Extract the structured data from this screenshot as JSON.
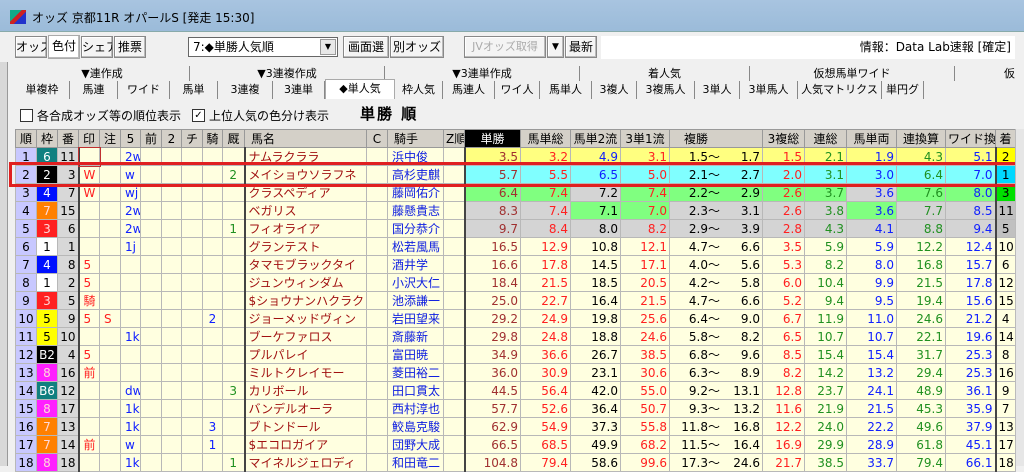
{
  "window": {
    "title": "オッズ 京都11R オパールS  [発走 15:30]",
    "icon": "app-horse-icon"
  },
  "toolbar": {
    "buttons": [
      "オッズ",
      "色付",
      "シェア",
      "推票"
    ],
    "active": "色付",
    "select_value": "7:◆単勝人気順",
    "screen_select": "画面選",
    "other_odds": "別オッズ",
    "jv_fetch": "JVオッズ取得",
    "latest": "最新",
    "info": "情報：Data Lab速報 [確定]"
  },
  "tab_groups": [
    "▼連作成",
    "▼3連複作成",
    "▼3連単作成",
    "着人気",
    "仮想馬単ワイド",
    "仮"
  ],
  "tabs": [
    "単複枠",
    "馬連",
    "ワイド",
    "馬単",
    "3連複",
    "3連単",
    "◆単人気",
    "枠人気",
    "馬連人",
    "ワイ人",
    "馬単人",
    "3複人",
    "3複馬人",
    "3単人",
    "3単馬人",
    "人気マトリクス",
    "単円グ"
  ],
  "selected_tab": "◆単人気",
  "options": {
    "rank_display": {
      "label": "各合成オッズ等の順位表示",
      "checked": false
    },
    "color_display": {
      "label": "上位人気の色分け表示",
      "checked": true
    }
  },
  "heading": "単勝 順",
  "columns": [
    "順",
    "枠",
    "番",
    "印",
    "注",
    "5",
    "前",
    "2",
    "チ",
    "騎",
    "厩",
    "馬名",
    "C",
    "騎手",
    "Z順",
    "単勝",
    "馬単総",
    "馬単2流",
    "3単1流",
    "複勝",
    "3複総",
    "連総",
    "馬単両",
    "連換算",
    "ワイド換",
    "着"
  ],
  "waku_colors": {
    "1": "#ffffff",
    "2": "#000000",
    "3": "#ff2020",
    "4": "#0010ff",
    "5": "#ffff00",
    "6": "#108080",
    "7": "#ff8000",
    "8": "#ff20ff",
    "B2": "#000000",
    "B6": "#108080"
  },
  "highlight_colors": {
    "yellow": "#ffff80",
    "cyan": "#80ffff",
    "green": "#80ff80",
    "grey": "#d4d4d4"
  },
  "chaku_colors": {
    "1": "#ffff00",
    "2": "#00d8ff",
    "3": "#00e000",
    "4": "#c0c0c0",
    "5": "#c0c0c0"
  },
  "rows": [
    {
      "rank": "1",
      "waku": "6",
      "ban": "11",
      "mark": "",
      "chu": "",
      "five": "2w",
      "mae": "",
      "two": "",
      "chi": "",
      "ki": "",
      "kyu": "",
      "name": "ナムラクララ",
      "c": "",
      "jockey": "浜中俊",
      "z": "",
      "tan": "3.5",
      "ut_sou": "3.2",
      "ut2": "4.9",
      "s1": "3.1",
      "fuku_lo": "1.5〜",
      "fuku_hi": "1.7",
      "sp": "1.5",
      "ren": "2.1",
      "ut_ryo": "1.9",
      "renkan": "4.3",
      "wide": "5.1",
      "chaku": "2",
      "hl": "yellow",
      "alt": {},
      "ut2_color": "blu"
    },
    {
      "rank": "2",
      "waku": "2",
      "ban": "3",
      "mark": "W",
      "chu": "",
      "five": "w",
      "mae": "",
      "two": "",
      "chi": "",
      "ki": "",
      "kyu": "2",
      "name": "メイショウソラフネ",
      "c": "",
      "jockey": "高杉吏麒",
      "z": "",
      "tan": "5.7",
      "ut_sou": "5.5",
      "ut2": "6.5",
      "s1": "5.0",
      "fuku_lo": "2.1〜",
      "fuku_hi": "2.7",
      "sp": "2.0",
      "ren": "3.1",
      "ut_ryo": "3.0",
      "renkan": "6.4",
      "wide": "7.0",
      "chaku": "1",
      "hl": "cyan",
      "alt": {},
      "ut2_color": "blu"
    },
    {
      "rank": "3",
      "waku": "4",
      "ban": "7",
      "mark": "W",
      "chu": "",
      "five": "wj",
      "mae": "",
      "two": "",
      "chi": "",
      "ki": "",
      "kyu": "",
      "name": "クラスペディア",
      "c": "",
      "jockey": "藤岡佑介",
      "z": "",
      "tan": "6.4",
      "ut_sou": "7.4",
      "ut2": "7.2",
      "s1": "7.4",
      "fuku_lo": "2.2〜",
      "fuku_hi": "2.9",
      "sp": "2.6",
      "ren": "3.7",
      "ut_ryo": "3.6",
      "renkan": "7.6",
      "wide": "8.0",
      "chaku": "3",
      "hl": "green",
      "alt": {
        "ut2": "grey",
        "ut_ryo": "grey"
      }
    },
    {
      "rank": "4",
      "waku": "7",
      "ban": "15",
      "mark": "",
      "chu": "",
      "five": "2w",
      "mae": "",
      "two": "",
      "chi": "",
      "ki": "",
      "kyu": "",
      "name": "ベガリス",
      "c": "",
      "jockey": "藤懸貴志",
      "z": "",
      "tan": "8.3",
      "ut_sou": "7.4",
      "ut2": "7.1",
      "s1": "7.0",
      "fuku_lo": "2.3〜",
      "fuku_hi": "3.1",
      "sp": "2.6",
      "ren": "3.8",
      "ut_ryo": "3.6",
      "renkan": "7.7",
      "wide": "8.5",
      "chaku": "11",
      "hl": "grey",
      "alt": {
        "ut2": "green",
        "s1": "green",
        "ut_ryo": "green"
      }
    },
    {
      "rank": "5",
      "waku": "3",
      "ban": "6",
      "mark": "",
      "chu": "",
      "five": "2w",
      "mae": "",
      "two": "",
      "chi": "",
      "ki": "",
      "kyu": "1",
      "name": "フィオライア",
      "c": "",
      "jockey": "国分恭介",
      "z": "",
      "tan": "9.7",
      "ut_sou": "8.4",
      "ut2": "8.0",
      "s1": "8.2",
      "fuku_lo": "2.9〜",
      "fuku_hi": "3.9",
      "sp": "2.8",
      "ren": "4.3",
      "ut_ryo": "4.1",
      "renkan": "8.8",
      "wide": "9.4",
      "chaku": "5",
      "hl": "grey",
      "alt": {}
    },
    {
      "rank": "6",
      "waku": "1",
      "ban": "1",
      "mark": "",
      "chu": "",
      "five": "1j",
      "mae": "",
      "two": "",
      "chi": "",
      "ki": "",
      "kyu": "",
      "name": "グランテスト",
      "c": "",
      "jockey": "松若風馬",
      "z": "",
      "tan": "16.5",
      "ut_sou": "12.9",
      "ut2": "10.8",
      "s1": "12.1",
      "fuku_lo": "4.7〜",
      "fuku_hi": "6.6",
      "sp": "3.5",
      "ren": "5.9",
      "ut_ryo": "5.9",
      "renkan": "12.2",
      "wide": "12.4",
      "chaku": "10",
      "hl": "",
      "alt": {}
    },
    {
      "rank": "7",
      "waku": "4",
      "ban": "8",
      "mark": "5",
      "chu": "",
      "five": "",
      "mae": "",
      "two": "",
      "chi": "",
      "ki": "",
      "kyu": "",
      "name": "タマモブラックタイ",
      "c": "",
      "jockey": "酒井学",
      "z": "",
      "tan": "16.6",
      "ut_sou": "17.8",
      "ut2": "14.5",
      "s1": "17.1",
      "fuku_lo": "4.0〜",
      "fuku_hi": "5.6",
      "sp": "5.3",
      "ren": "8.2",
      "ut_ryo": "8.0",
      "renkan": "16.8",
      "wide": "15.7",
      "chaku": "6",
      "hl": "",
      "alt": {}
    },
    {
      "rank": "8",
      "waku": "1",
      "ban": "2",
      "mark": "5",
      "chu": "",
      "five": "",
      "mae": "",
      "two": "",
      "chi": "",
      "ki": "",
      "kyu": "",
      "name": "ジュンウィンダム",
      "c": "",
      "jockey": "小沢大仁",
      "z": "",
      "tan": "18.4",
      "ut_sou": "21.5",
      "ut2": "18.5",
      "s1": "20.5",
      "fuku_lo": "4.2〜",
      "fuku_hi": "5.8",
      "sp": "6.0",
      "ren": "10.4",
      "ut_ryo": "9.9",
      "renkan": "21.5",
      "wide": "17.8",
      "chaku": "12",
      "hl": "",
      "alt": {}
    },
    {
      "rank": "9",
      "waku": "3",
      "ban": "5",
      "mark": "騎",
      "chu": "",
      "five": "",
      "mae": "",
      "two": "",
      "chi": "",
      "ki": "",
      "kyu": "",
      "name": "$ショウナンハクラク",
      "c": "",
      "jockey": "池添謙一",
      "z": "",
      "tan": "25.0",
      "ut_sou": "22.7",
      "ut2": "16.4",
      "s1": "21.5",
      "fuku_lo": "4.7〜",
      "fuku_hi": "6.6",
      "sp": "5.2",
      "ren": "9.4",
      "ut_ryo": "9.5",
      "renkan": "19.4",
      "wide": "15.6",
      "chaku": "15",
      "hl": "",
      "alt": {}
    },
    {
      "rank": "10",
      "waku": "5",
      "ban": "9",
      "mark": "5",
      "chu": "S",
      "five": "",
      "mae": "",
      "two": "",
      "chi": "",
      "ki": "2",
      "kyu": "",
      "name": "ジョーメッドヴィン",
      "c": "",
      "jockey": "岩田望来",
      "z": "",
      "tan": "29.2",
      "ut_sou": "24.9",
      "ut2": "19.8",
      "s1": "25.6",
      "fuku_lo": "6.4〜",
      "fuku_hi": "9.0",
      "sp": "6.7",
      "ren": "11.9",
      "ut_ryo": "11.0",
      "renkan": "24.6",
      "wide": "21.2",
      "chaku": "4",
      "hl": "",
      "alt": {}
    },
    {
      "rank": "11",
      "waku": "5",
      "ban": "10",
      "mark": "",
      "chu": "",
      "five": "1k",
      "mae": "",
      "two": "",
      "chi": "",
      "ki": "",
      "kyu": "",
      "name": "ブーケファロス",
      "c": "",
      "jockey": "斎藤新",
      "z": "",
      "tan": "29.8",
      "ut_sou": "24.8",
      "ut2": "18.8",
      "s1": "24.6",
      "fuku_lo": "5.8〜",
      "fuku_hi": "8.2",
      "sp": "6.5",
      "ren": "10.7",
      "ut_ryo": "10.7",
      "renkan": "22.1",
      "wide": "19.6",
      "chaku": "14",
      "hl": "",
      "alt": {}
    },
    {
      "rank": "12",
      "waku": "B2",
      "ban": "4",
      "mark": "5",
      "chu": "",
      "five": "",
      "mae": "",
      "two": "",
      "chi": "",
      "ki": "",
      "kyu": "",
      "name": "プルパレイ",
      "c": "",
      "jockey": "富田暁",
      "z": "",
      "tan": "34.9",
      "ut_sou": "36.6",
      "ut2": "26.7",
      "s1": "38.5",
      "fuku_lo": "6.8〜",
      "fuku_hi": "9.6",
      "sp": "8.5",
      "ren": "15.4",
      "ut_ryo": "15.4",
      "renkan": "31.7",
      "wide": "25.3",
      "chaku": "8",
      "hl": "",
      "alt": {}
    },
    {
      "rank": "13",
      "waku": "8",
      "ban": "16",
      "mark": "前",
      "chu": "",
      "five": "",
      "mae": "",
      "two": "",
      "chi": "",
      "ki": "",
      "kyu": "",
      "name": "ミルトクレイモー",
      "c": "",
      "jockey": "菱田裕二",
      "z": "",
      "tan": "36.0",
      "ut_sou": "30.9",
      "ut2": "23.1",
      "s1": "30.6",
      "fuku_lo": "6.3〜",
      "fuku_hi": "8.9",
      "sp": "8.2",
      "ren": "14.2",
      "ut_ryo": "13.2",
      "renkan": "29.4",
      "wide": "25.3",
      "chaku": "16",
      "hl": "",
      "alt": {}
    },
    {
      "rank": "14",
      "waku": "B6",
      "ban": "12",
      "mark": "",
      "chu": "",
      "five": "dw",
      "mae": "",
      "two": "",
      "chi": "",
      "ki": "",
      "kyu": "3",
      "name": "カリボール",
      "c": "",
      "jockey": "田口貫太",
      "z": "",
      "tan": "44.5",
      "ut_sou": "56.4",
      "ut2": "42.0",
      "s1": "55.0",
      "fuku_lo": "9.2〜",
      "fuku_hi": "13.1",
      "sp": "12.8",
      "ren": "23.7",
      "ut_ryo": "24.1",
      "renkan": "48.9",
      "wide": "36.1",
      "chaku": "9",
      "hl": "",
      "alt": {}
    },
    {
      "rank": "15",
      "waku": "8",
      "ban": "17",
      "mark": "",
      "chu": "",
      "five": "1k",
      "mae": "",
      "two": "",
      "chi": "",
      "ki": "",
      "kyu": "",
      "name": "バンデルオーラ",
      "c": "",
      "jockey": "西村淳也",
      "z": "",
      "tan": "57.7",
      "ut_sou": "52.6",
      "ut2": "36.4",
      "s1": "50.7",
      "fuku_lo": "9.3〜",
      "fuku_hi": "13.2",
      "sp": "11.6",
      "ren": "21.9",
      "ut_ryo": "21.5",
      "renkan": "45.3",
      "wide": "35.9",
      "chaku": "7",
      "hl": "",
      "alt": {}
    },
    {
      "rank": "16",
      "waku": "7",
      "ban": "13",
      "mark": "",
      "chu": "",
      "five": "1k",
      "mae": "",
      "two": "",
      "chi": "",
      "ki": "3",
      "kyu": "",
      "name": "ブトンドール",
      "c": "",
      "jockey": "鮫島克駿",
      "z": "",
      "tan": "62.9",
      "ut_sou": "54.9",
      "ut2": "37.3",
      "s1": "55.8",
      "fuku_lo": "11.8〜",
      "fuku_hi": "16.8",
      "sp": "12.2",
      "ren": "24.0",
      "ut_ryo": "22.2",
      "renkan": "49.6",
      "wide": "37.9",
      "chaku": "13",
      "hl": "",
      "alt": {}
    },
    {
      "rank": "17",
      "waku": "7",
      "ban": "14",
      "mark": "前",
      "chu": "",
      "five": "w",
      "mae": "",
      "two": "",
      "chi": "",
      "ki": "1",
      "kyu": "",
      "name": "$エコロガイア",
      "c": "",
      "jockey": "団野大成",
      "z": "",
      "tan": "66.5",
      "ut_sou": "68.5",
      "ut2": "49.9",
      "s1": "68.2",
      "fuku_lo": "11.5〜",
      "fuku_hi": "16.4",
      "sp": "16.9",
      "ren": "29.9",
      "ut_ryo": "28.9",
      "renkan": "61.8",
      "wide": "45.1",
      "chaku": "17",
      "hl": "",
      "alt": {}
    },
    {
      "rank": "18",
      "waku": "8",
      "ban": "18",
      "mark": "",
      "chu": "",
      "five": "1k",
      "mae": "",
      "two": "",
      "chi": "",
      "ki": "",
      "kyu": "1",
      "name": "マイネルジェロディ",
      "c": "",
      "jockey": "和田竜二",
      "z": "",
      "tan": "104.8",
      "ut_sou": "79.4",
      "ut2": "58.6",
      "s1": "99.6",
      "fuku_lo": "17.3〜",
      "fuku_hi": "24.6",
      "sp": "21.7",
      "ren": "38.5",
      "ut_ryo": "33.7",
      "renkan": "79.4",
      "wide": "66.1",
      "chaku": "18",
      "hl": "",
      "alt": {}
    }
  ]
}
